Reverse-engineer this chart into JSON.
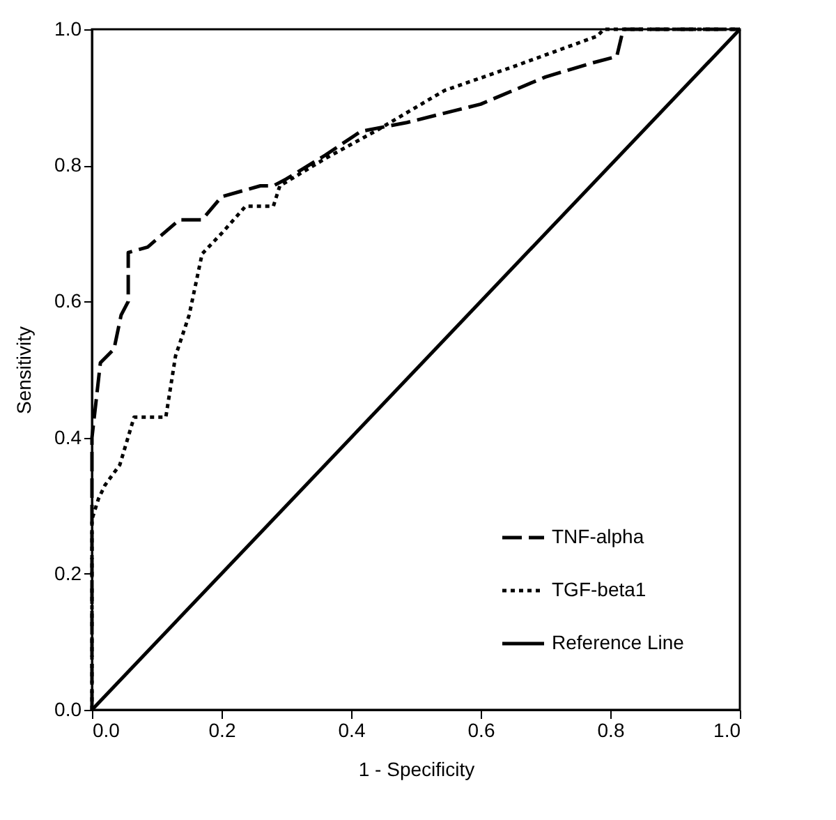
{
  "chart_data": {
    "type": "line",
    "xlabel": "1 - Specificity",
    "ylabel": "Sensitivity",
    "xlim": [
      0,
      1
    ],
    "ylim": [
      0,
      1
    ],
    "xticks": [
      {
        "value": 0,
        "label": "0.0"
      },
      {
        "value": 0.2,
        "label": "0.2"
      },
      {
        "value": 0.4,
        "label": "0.4"
      },
      {
        "value": 0.6,
        "label": "0.6"
      },
      {
        "value": 0.8,
        "label": "0.8"
      },
      {
        "value": 1,
        "label": "1.0"
      }
    ],
    "yticks": [
      {
        "value": 0,
        "label": "0.0"
      },
      {
        "value": 0.2,
        "label": "0.2"
      },
      {
        "value": 0.4,
        "label": "0.4"
      },
      {
        "value": 0.6,
        "label": "0.6"
      },
      {
        "value": 0.8,
        "label": "0.8"
      },
      {
        "value": 1,
        "label": "1.0"
      }
    ],
    "grid": false,
    "legend": "bottom right",
    "series": [
      {
        "name": "TNF-alpha",
        "color": "#000000",
        "line_style": "dashed",
        "x": [
          0,
          0,
          0.013,
          0.034,
          0.045,
          0.056,
          0.056,
          0.086,
          0.135,
          0.17,
          0.2,
          0.26,
          0.28,
          0.3,
          0.36,
          0.415,
          0.486,
          0.6,
          0.7,
          0.77,
          0.81,
          0.82,
          1
        ],
        "values": [
          0,
          0.4,
          0.51,
          0.53,
          0.58,
          0.6,
          0.672,
          0.68,
          0.72,
          0.72,
          0.754,
          0.77,
          0.77,
          0.78,
          0.815,
          0.85,
          0.863,
          0.89,
          0.93,
          0.95,
          0.96,
          1,
          1
        ]
      },
      {
        "name": "TGF-beta1",
        "color": "#000000",
        "line_style": "dotted",
        "x": [
          0,
          0,
          0.01,
          0.02,
          0.043,
          0.065,
          0.114,
          0.129,
          0.15,
          0.17,
          0.2,
          0.237,
          0.28,
          0.29,
          0.36,
          0.437,
          0.544,
          0.65,
          0.78,
          0.79,
          1
        ],
        "values": [
          0,
          0.28,
          0.31,
          0.33,
          0.36,
          0.43,
          0.43,
          0.52,
          0.58,
          0.67,
          0.7,
          0.74,
          0.74,
          0.77,
          0.81,
          0.85,
          0.91,
          0.945,
          0.99,
          1,
          1
        ]
      },
      {
        "name": "Reference Line",
        "color": "#000000",
        "line_style": "solid",
        "x": [
          0,
          1
        ],
        "values": [
          0,
          1
        ]
      }
    ]
  }
}
